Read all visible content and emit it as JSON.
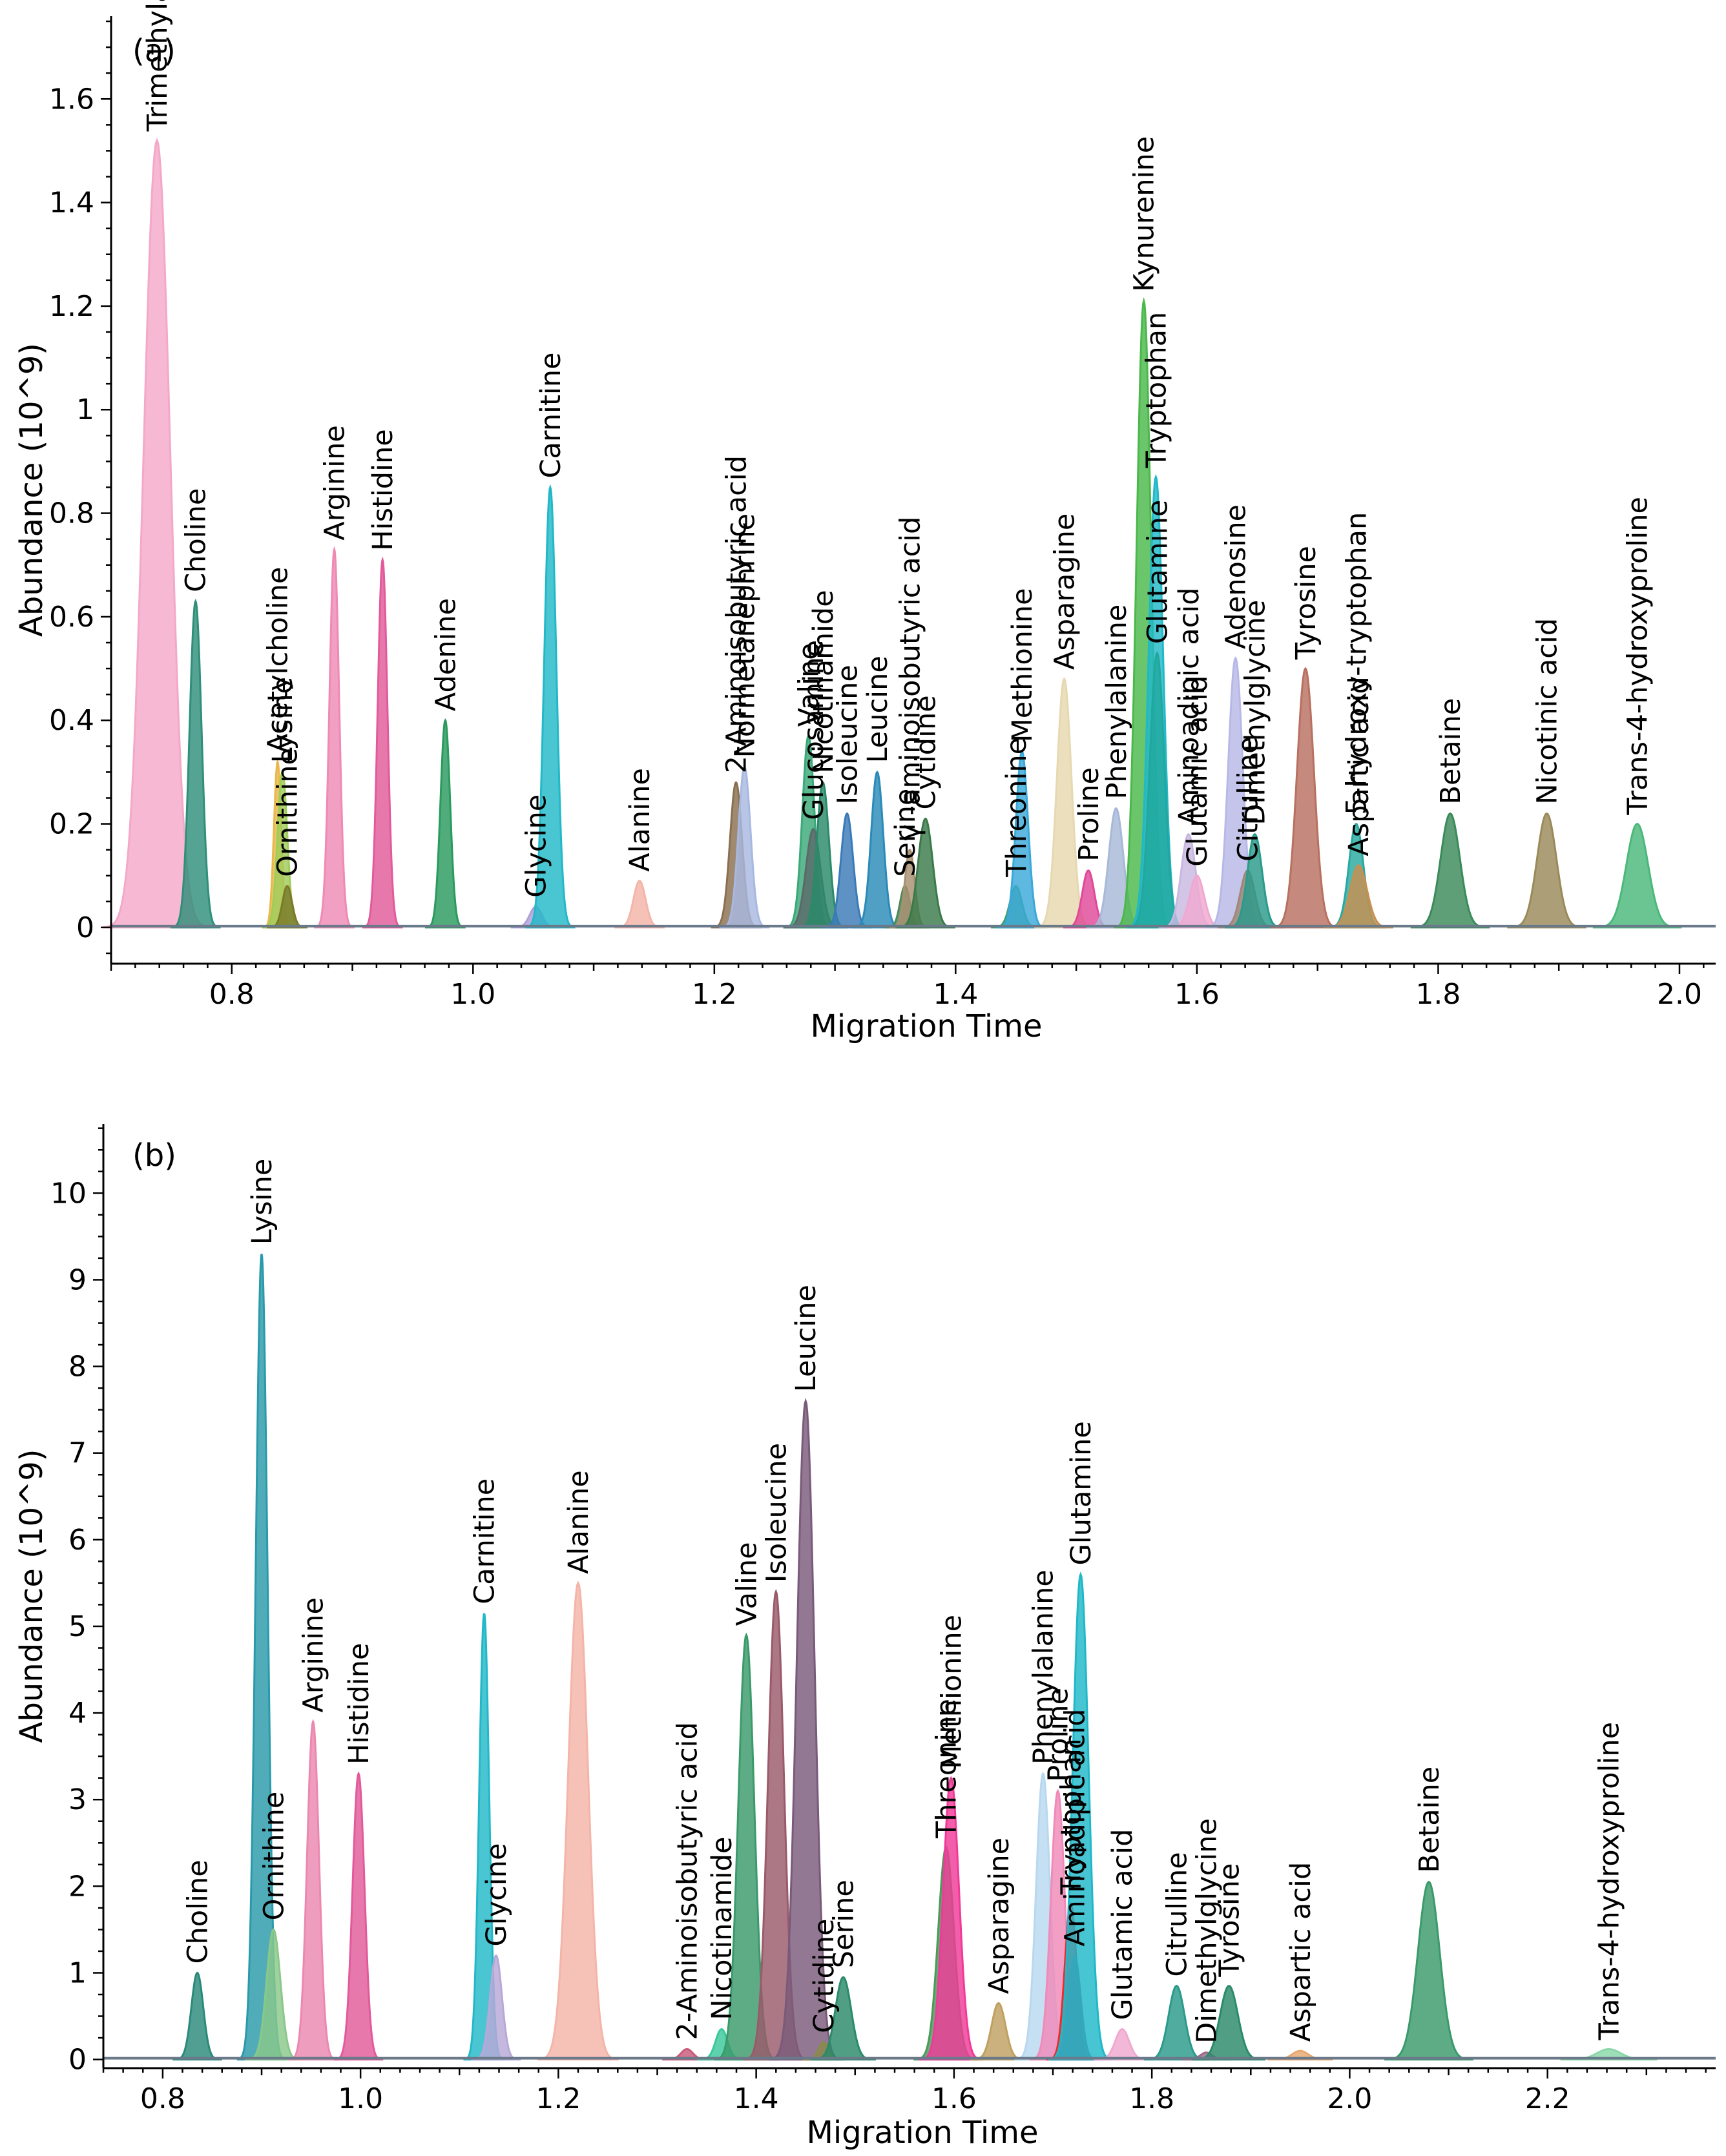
{
  "chart_data": [
    {
      "type": "area",
      "panel_label": "(a)",
      "xlabel": "Migration Time",
      "ylabel": "Abundance (10^9)",
      "xlim": [
        0.7,
        2.03
      ],
      "ylim": [
        -0.07,
        1.76
      ],
      "xticks": [
        0.8,
        1.0,
        1.2,
        1.4,
        1.6,
        1.8,
        2.0
      ],
      "xtick_labels": [
        "0.8",
        "1.0",
        "1.2",
        "1.4",
        "1.6",
        "1.8",
        "2.0"
      ],
      "yticks": [
        0,
        0.2,
        0.4,
        0.6,
        0.8,
        1,
        1.2,
        1.4,
        1.6
      ],
      "ytick_labels": [
        "0",
        "0.2",
        "0.4",
        "0.6",
        "0.8",
        "1",
        "1.2",
        "1.4",
        "1.6"
      ],
      "peaks": [
        {
          "name": "Trimethylamine N-oxide",
          "x": 0.738,
          "y": 1.52,
          "width": 0.011,
          "color": "#f4a8c8"
        },
        {
          "name": "Choline",
          "x": 0.77,
          "y": 0.63,
          "width": 0.005,
          "color": "#2f8f7a"
        },
        {
          "name": "Acetylcholine",
          "x": 0.838,
          "y": 0.32,
          "width": 0.003,
          "color": "#e8b84a"
        },
        {
          "name": "Lysine",
          "x": 0.842,
          "y": 0.3,
          "width": 0.004,
          "color": "#a0cc5a"
        },
        {
          "name": "Ornithine",
          "x": 0.846,
          "y": 0.08,
          "width": 0.004,
          "color": "#7a7a2a"
        },
        {
          "name": "Arginine",
          "x": 0.885,
          "y": 0.73,
          "width": 0.004,
          "color": "#ee8ab4"
        },
        {
          "name": "Histidine",
          "x": 0.925,
          "y": 0.71,
          "width": 0.004,
          "color": "#e25a9a"
        },
        {
          "name": "Adenine",
          "x": 0.977,
          "y": 0.4,
          "width": 0.004,
          "color": "#2a9a5e"
        },
        {
          "name": "Glycine",
          "x": 1.052,
          "y": 0.04,
          "width": 0.005,
          "color": "#b0a0d8"
        },
        {
          "name": "Carnitine",
          "x": 1.064,
          "y": 0.85,
          "width": 0.005,
          "color": "#22b8c8"
        },
        {
          "name": "Alanine",
          "x": 1.138,
          "y": 0.09,
          "width": 0.005,
          "color": "#f4b4a8"
        },
        {
          "name": "2-Aminoisobutyric acid",
          "x": 1.218,
          "y": 0.28,
          "width": 0.005,
          "color": "#8a7050"
        },
        {
          "name": "Normetanephrine",
          "x": 1.225,
          "y": 0.31,
          "width": 0.005,
          "color": "#a8b8e0"
        },
        {
          "name": "Valine",
          "x": 1.278,
          "y": 0.37,
          "width": 0.005,
          "color": "#3aa878"
        },
        {
          "name": "Glucosamine",
          "x": 1.282,
          "y": 0.19,
          "width": 0.006,
          "color": "#5a6a6a"
        },
        {
          "name": "Nicotinamide",
          "x": 1.29,
          "y": 0.28,
          "width": 0.005,
          "color": "#2a8a6a"
        },
        {
          "name": "Isoleucine",
          "x": 1.31,
          "y": 0.22,
          "width": 0.005,
          "color": "#3a7ab8"
        },
        {
          "name": "Leucine",
          "x": 1.335,
          "y": 0.3,
          "width": 0.005,
          "color": "#2a8ab8"
        },
        {
          "name": "Serine",
          "x": 1.358,
          "y": 0.08,
          "width": 0.004,
          "color": "#4a8a5a"
        },
        {
          "name": "γ -aminoisobutyric acid",
          "x": 1.362,
          "y": 0.15,
          "width": 0.004,
          "color": "#a89070"
        },
        {
          "name": "Cytidine",
          "x": 1.375,
          "y": 0.21,
          "width": 0.006,
          "color": "#3a7a4a"
        },
        {
          "name": "Threonine",
          "x": 1.45,
          "y": 0.08,
          "width": 0.005,
          "color": "#3aa070"
        },
        {
          "name": "Methionine",
          "x": 1.455,
          "y": 0.34,
          "width": 0.005,
          "color": "#3aa8d8"
        },
        {
          "name": "Asparagine",
          "x": 1.49,
          "y": 0.48,
          "width": 0.006,
          "color": "#e6d8b0"
        },
        {
          "name": "Proline",
          "x": 1.51,
          "y": 0.11,
          "width": 0.005,
          "color": "#e04898"
        },
        {
          "name": "Phenylalanine",
          "x": 1.533,
          "y": 0.23,
          "width": 0.006,
          "color": "#a8b8d8"
        },
        {
          "name": "Kynurenine",
          "x": 1.556,
          "y": 1.21,
          "width": 0.006,
          "color": "#4ab84a"
        },
        {
          "name": "Tryptophan",
          "x": 1.566,
          "y": 0.87,
          "width": 0.006,
          "color": "#22b8c8"
        },
        {
          "name": "Glutamine",
          "x": 1.567,
          "y": 0.53,
          "width": 0.006,
          "color": "#20a8a0"
        },
        {
          "name": "Aminoadipic acid",
          "x": 1.593,
          "y": 0.18,
          "width": 0.006,
          "color": "#c8b8e0"
        },
        {
          "name": "Glutamic acid",
          "x": 1.6,
          "y": 0.1,
          "width": 0.006,
          "color": "#f0a8d0"
        },
        {
          "name": "Adenosine",
          "x": 1.632,
          "y": 0.52,
          "width": 0.006,
          "color": "#b8b8e8"
        },
        {
          "name": "Citrulline",
          "x": 1.642,
          "y": 0.11,
          "width": 0.006,
          "color": "#a08878"
        },
        {
          "name": "Dimethylglycine",
          "x": 1.648,
          "y": 0.18,
          "width": 0.006,
          "color": "#2a9a8a"
        },
        {
          "name": "Tyrosine",
          "x": 1.69,
          "y": 0.5,
          "width": 0.007,
          "color": "#b87060"
        },
        {
          "name": "5-hydroxy-tryptophan",
          "x": 1.732,
          "y": 0.2,
          "width": 0.006,
          "color": "#28a8a0"
        },
        {
          "name": "Aspartic acid",
          "x": 1.734,
          "y": 0.12,
          "width": 0.007,
          "color": "#c89050"
        },
        {
          "name": "Betaine",
          "x": 1.81,
          "y": 0.22,
          "width": 0.008,
          "color": "#3a8a5a"
        },
        {
          "name": "Nicotinic acid",
          "x": 1.89,
          "y": 0.22,
          "width": 0.008,
          "color": "#9a8a5a"
        },
        {
          "name": "Trans-4-hydroxyproline",
          "x": 1.965,
          "y": 0.2,
          "width": 0.009,
          "color": "#4ab87a"
        }
      ]
    },
    {
      "type": "area",
      "panel_label": "(b)",
      "xlabel": "Migration Time",
      "ylabel": "Abundance (10^9)",
      "xlim": [
        0.74,
        2.37
      ],
      "ylim": [
        -0.1,
        10.8
      ],
      "xticks": [
        0.8,
        1.0,
        1.2,
        1.4,
        1.6,
        1.8,
        2.0,
        2.2
      ],
      "xtick_labels": [
        "0.8",
        "1.0",
        "1.2",
        "1.4",
        "1.6",
        "1.8",
        "2.0",
        "2.2"
      ],
      "yticks": [
        0,
        1,
        2,
        3,
        4,
        5,
        6,
        7,
        8,
        9,
        10
      ],
      "ytick_labels": [
        "0",
        "1",
        "2",
        "3",
        "4",
        "5",
        "6",
        "7",
        "8",
        "9",
        "10"
      ],
      "peaks": [
        {
          "name": "Choline",
          "x": 0.835,
          "y": 1.0,
          "width": 0.006,
          "color": "#2a8a7a"
        },
        {
          "name": "Lysine",
          "x": 0.9,
          "y": 9.3,
          "width": 0.006,
          "color": "#2a9aaa"
        },
        {
          "name": "Ornithine",
          "x": 0.912,
          "y": 1.5,
          "width": 0.007,
          "color": "#8ac88a"
        },
        {
          "name": "Arginine",
          "x": 0.952,
          "y": 3.9,
          "width": 0.006,
          "color": "#ec88b0"
        },
        {
          "name": "Histidine",
          "x": 0.998,
          "y": 3.3,
          "width": 0.006,
          "color": "#e25a9a"
        },
        {
          "name": "Carnitine",
          "x": 1.125,
          "y": 5.15,
          "width": 0.005,
          "color": "#22b8c8"
        },
        {
          "name": "Glycine",
          "x": 1.137,
          "y": 1.2,
          "width": 0.006,
          "color": "#b8a8d8"
        },
        {
          "name": "Alanine",
          "x": 1.22,
          "y": 5.5,
          "width": 0.01,
          "color": "#f4b4a8"
        },
        {
          "name": "2-Aminoisobutyric acid",
          "x": 1.33,
          "y": 0.12,
          "width": 0.006,
          "color": "#c85a7a"
        },
        {
          "name": "Nicotinamide",
          "x": 1.365,
          "y": 0.35,
          "width": 0.006,
          "color": "#3ac89a"
        },
        {
          "name": "Valine",
          "x": 1.39,
          "y": 4.9,
          "width": 0.008,
          "color": "#3a9a6a"
        },
        {
          "name": "Isoleucine",
          "x": 1.42,
          "y": 5.4,
          "width": 0.008,
          "color": "#9a5a6a"
        },
        {
          "name": "Leucine",
          "x": 1.45,
          "y": 7.6,
          "width": 0.009,
          "color": "#7a5a7a"
        },
        {
          "name": "Cytidine",
          "x": 1.468,
          "y": 0.2,
          "width": 0.005,
          "color": "#8a8a4a"
        },
        {
          "name": "Serine",
          "x": 1.488,
          "y": 0.95,
          "width": 0.008,
          "color": "#2a8a6a"
        },
        {
          "name": "Threonine",
          "x": 1.592,
          "y": 2.45,
          "width": 0.008,
          "color": "#4a9a5a"
        },
        {
          "name": "Methionine",
          "x": 1.597,
          "y": 3.25,
          "width": 0.008,
          "color": "#f03a98"
        },
        {
          "name": "Asparagine",
          "x": 1.645,
          "y": 0.65,
          "width": 0.007,
          "color": "#c0a060"
        },
        {
          "name": "Phenylalanine",
          "x": 1.69,
          "y": 3.3,
          "width": 0.007,
          "color": "#b8d8f0"
        },
        {
          "name": "Proline",
          "x": 1.705,
          "y": 3.1,
          "width": 0.007,
          "color": "#f08ab8"
        },
        {
          "name": "Tryptophan",
          "x": 1.718,
          "y": 1.8,
          "width": 0.006,
          "color": "#f02a2a"
        },
        {
          "name": "Aminoadipic acid",
          "x": 1.722,
          "y": 1.2,
          "width": 0.006,
          "color": "#8a5a8a"
        },
        {
          "name": "Glutamine",
          "x": 1.728,
          "y": 5.6,
          "width": 0.008,
          "color": "#20b8c8"
        },
        {
          "name": "Glutamic acid",
          "x": 1.77,
          "y": 0.35,
          "width": 0.007,
          "color": "#f0a8d0"
        },
        {
          "name": "Citrulline",
          "x": 1.825,
          "y": 0.85,
          "width": 0.008,
          "color": "#2a9a8a"
        },
        {
          "name": "Dimethylglycine",
          "x": 1.855,
          "y": 0.08,
          "width": 0.006,
          "color": "#9a6a8a"
        },
        {
          "name": "Tyrosine",
          "x": 1.878,
          "y": 0.85,
          "width": 0.009,
          "color": "#2a8a6a"
        },
        {
          "name": "Aspartic acid",
          "x": 1.95,
          "y": 0.1,
          "width": 0.008,
          "color": "#e8a870"
        },
        {
          "name": "Betaine",
          "x": 2.08,
          "y": 2.05,
          "width": 0.011,
          "color": "#3a9a6a"
        },
        {
          "name": "Trans-4-hydroxyproline",
          "x": 2.262,
          "y": 0.12,
          "width": 0.012,
          "color": "#8ad8a8"
        }
      ]
    }
  ]
}
